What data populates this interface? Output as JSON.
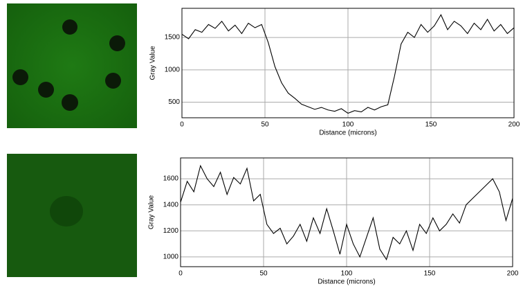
{
  "chart_data": [
    {
      "type": "line",
      "xlabel": "Distance (microns)",
      "ylabel": "Gray Value",
      "x": [
        0,
        4,
        8,
        12,
        16,
        20,
        24,
        28,
        32,
        36,
        40,
        44,
        48,
        52,
        56,
        60,
        64,
        68,
        72,
        76,
        80,
        84,
        88,
        92,
        96,
        100,
        104,
        108,
        112,
        116,
        120,
        124,
        128,
        132,
        136,
        140,
        144,
        148,
        152,
        156,
        160,
        164,
        168,
        172,
        176,
        180,
        184,
        188,
        192,
        196,
        200
      ],
      "series": [
        {
          "color": "#000000",
          "values": [
            1550,
            1480,
            1620,
            1580,
            1700,
            1640,
            1750,
            1600,
            1690,
            1560,
            1720,
            1650,
            1700,
            1420,
            1050,
            800,
            640,
            560,
            470,
            430,
            390,
            420,
            380,
            360,
            400,
            330,
            370,
            350,
            420,
            380,
            430,
            460,
            900,
            1400,
            1580,
            1500,
            1700,
            1580,
            1680,
            1850,
            1620,
            1750,
            1680,
            1560,
            1720,
            1620,
            1780,
            1600,
            1700,
            1560,
            1650
          ]
        }
      ],
      "xlim": [
        0,
        200
      ],
      "xticks": [
        0,
        50,
        100,
        150,
        200
      ],
      "ylim": [
        260,
        1950
      ],
      "yticks": [
        500,
        1000,
        1500
      ],
      "grid": true
    },
    {
      "type": "line",
      "xlabel": "Distance (microns)",
      "ylabel": "Gray Value",
      "x": [
        0,
        4,
        8,
        12,
        16,
        20,
        24,
        28,
        32,
        36,
        40,
        44,
        48,
        52,
        56,
        60,
        64,
        68,
        72,
        76,
        80,
        84,
        88,
        92,
        96,
        100,
        104,
        108,
        112,
        116,
        120,
        124,
        128,
        132,
        136,
        140,
        144,
        148,
        152,
        156,
        160,
        164,
        168,
        172,
        176,
        180,
        184,
        188,
        192,
        196,
        200
      ],
      "series": [
        {
          "color": "#000000",
          "values": [
            1420,
            1580,
            1500,
            1700,
            1600,
            1540,
            1650,
            1480,
            1610,
            1560,
            1680,
            1430,
            1480,
            1250,
            1180,
            1220,
            1100,
            1160,
            1250,
            1120,
            1300,
            1180,
            1370,
            1200,
            1020,
            1250,
            1100,
            1000,
            1150,
            1300,
            1060,
            980,
            1150,
            1100,
            1200,
            1050,
            1250,
            1180,
            1300,
            1200,
            1250,
            1330,
            1260,
            1400,
            1450,
            1500,
            1550,
            1600,
            1500,
            1280,
            1450
          ]
        }
      ],
      "xlim": [
        0,
        200
      ],
      "xticks": [
        0,
        50,
        100,
        150,
        200
      ],
      "ylim": [
        925,
        1760
      ],
      "yticks": [
        1000,
        1200,
        1400,
        1600
      ],
      "grid": true
    }
  ]
}
